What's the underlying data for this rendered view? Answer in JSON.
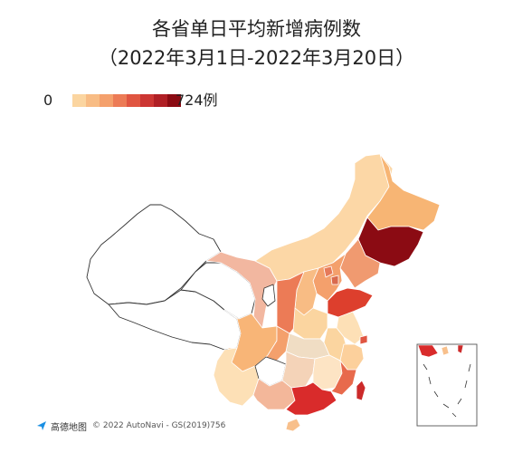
{
  "title": {
    "line1": "各省单日平均新增病例数",
    "line2": "（2022年3月1日-2022年3月20日）"
  },
  "legend": {
    "min_label": "0",
    "max_label": "724例",
    "colors": [
      "#fbd5a0",
      "#f8bc84",
      "#f4a06c",
      "#ec7b56",
      "#e05541",
      "#cc3633",
      "#b01f25",
      "#8b0b13"
    ]
  },
  "regions": [
    {
      "name": "xinjiang",
      "fill": "#ffffff"
    },
    {
      "name": "tibet",
      "fill": "#ffffff"
    },
    {
      "name": "qinghai",
      "fill": "#ffffff"
    },
    {
      "name": "gansu",
      "fill": "#f2b7a0"
    },
    {
      "name": "inner-mongolia",
      "fill": "#fcd7a6"
    },
    {
      "name": "heilongjiang",
      "fill": "#f7b574"
    },
    {
      "name": "jilin",
      "fill": "#8b0b13"
    },
    {
      "name": "liaoning",
      "fill": "#f09a70"
    },
    {
      "name": "hebei",
      "fill": "#f4a06c"
    },
    {
      "name": "beijing",
      "fill": "#e67a5a"
    },
    {
      "name": "tianjin",
      "fill": "#d96a4e"
    },
    {
      "name": "shandong",
      "fill": "#dd3f2d"
    },
    {
      "name": "shanxi",
      "fill": "#f8bc84"
    },
    {
      "name": "shaanxi",
      "fill": "#ec7b56"
    },
    {
      "name": "ningxia",
      "fill": "#ffffff"
    },
    {
      "name": "henan",
      "fill": "#fbd5a0"
    },
    {
      "name": "jiangsu",
      "fill": "#fde0b6"
    },
    {
      "name": "shanghai",
      "fill": "#e05541"
    },
    {
      "name": "zhejiang",
      "fill": "#fcd09c"
    },
    {
      "name": "anhui",
      "fill": "#fbd5a0"
    },
    {
      "name": "hubei",
      "fill": "#f0ddc4"
    },
    {
      "name": "sichuan",
      "fill": "#f8b577"
    },
    {
      "name": "chongqing",
      "fill": "#f4a06c"
    },
    {
      "name": "yunnan",
      "fill": "#fde0b6"
    },
    {
      "name": "guizhou",
      "fill": "#ffffff"
    },
    {
      "name": "hunan",
      "fill": "#f4d3b8"
    },
    {
      "name": "jiangxi",
      "fill": "#fde4c4"
    },
    {
      "name": "fujian",
      "fill": "#e86a4c"
    },
    {
      "name": "guangxi",
      "fill": "#f3b79a"
    },
    {
      "name": "guangdong",
      "fill": "#d92b2b"
    },
    {
      "name": "hainan",
      "fill": "#f8c08c"
    },
    {
      "name": "taiwan",
      "fill": "#cc2a2a"
    }
  ],
  "attribution": {
    "logo_text": "高德地图",
    "text": "© 2022 AutoNavi - GS(2019)756"
  }
}
